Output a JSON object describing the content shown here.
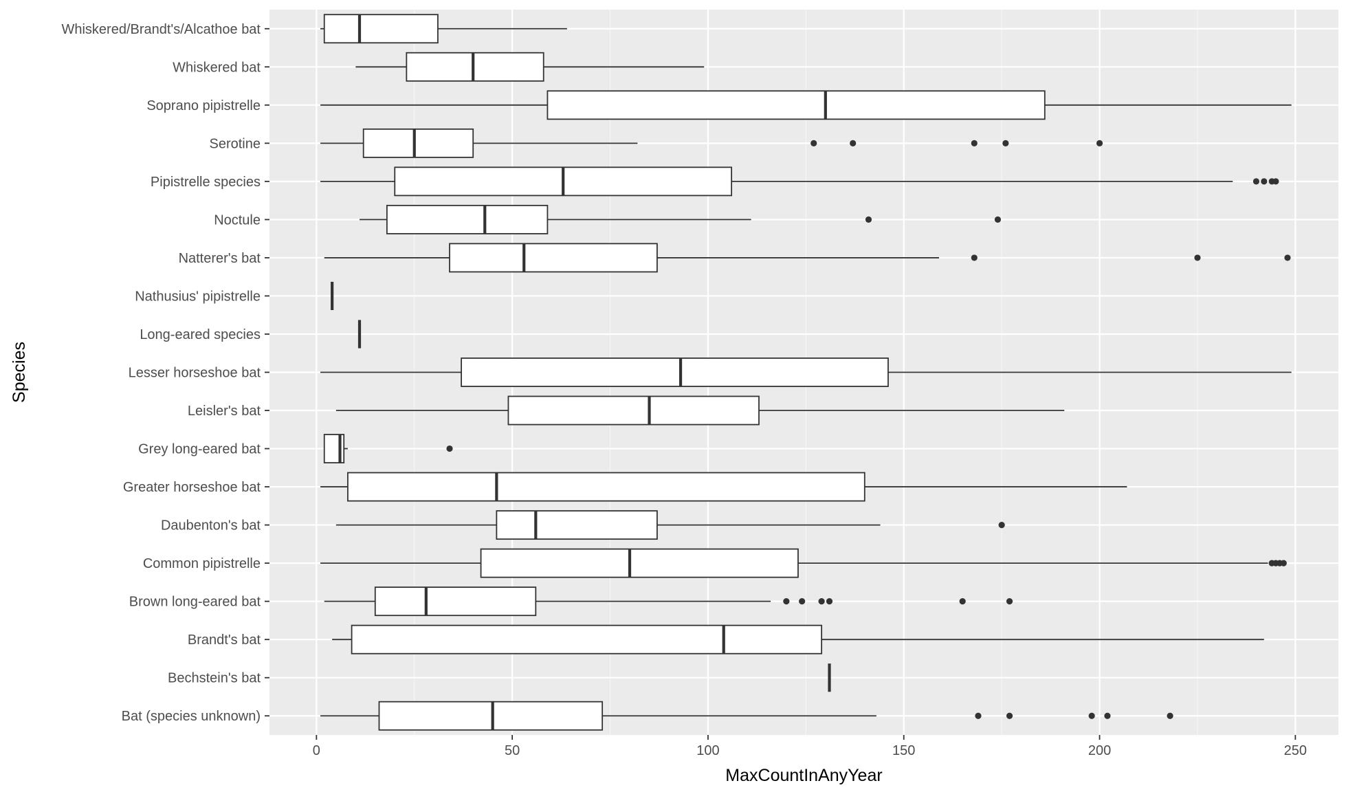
{
  "chart_data": {
    "type": "boxplot",
    "orientation": "horizontal",
    "xlabel": "MaxCountInAnyYear",
    "ylabel": "Species",
    "xlim": [
      -12,
      261
    ],
    "xticks": [
      0,
      50,
      100,
      150,
      200,
      250
    ],
    "grid": true,
    "legend": "none",
    "colors": {
      "panel": "#EBEBEB",
      "grid_major": "#FFFFFF",
      "box_fill": "#FFFFFF",
      "stroke": "#333333",
      "tick_text": "#4D4D4D"
    },
    "categories": [
      "Whiskered/Brandt's/Alcathoe bat",
      "Whiskered bat",
      "Soprano pipistrelle",
      "Serotine",
      "Pipistrelle species",
      "Noctule",
      "Natterer's bat",
      "Nathusius' pipistrelle",
      "Long-eared species",
      "Lesser horseshoe bat",
      "Leisler's bat",
      "Grey long-eared bat",
      "Greater horseshoe bat",
      "Daubenton's bat",
      "Common pipistrelle",
      "Brown long-eared bat",
      "Brandt's bat",
      "Bechstein's bat",
      "Bat (species unknown)"
    ],
    "boxes": [
      {
        "min": 1,
        "q1": 2,
        "median": 11,
        "q3": 31,
        "max": 64,
        "outliers": []
      },
      {
        "min": 10,
        "q1": 23,
        "median": 40,
        "q3": 58,
        "max": 99,
        "outliers": []
      },
      {
        "min": 1,
        "q1": 59,
        "median": 130,
        "q3": 186,
        "max": 249,
        "outliers": []
      },
      {
        "min": 1,
        "q1": 12,
        "median": 25,
        "q3": 40,
        "max": 82,
        "outliers": [
          127,
          137,
          168,
          176,
          200
        ]
      },
      {
        "min": 1,
        "q1": 20,
        "median": 63,
        "q3": 106,
        "max": 234,
        "outliers": [
          240,
          242,
          244,
          245
        ]
      },
      {
        "min": 11,
        "q1": 18,
        "median": 43,
        "q3": 59,
        "max": 111,
        "outliers": [
          141,
          174
        ]
      },
      {
        "min": 2,
        "q1": 34,
        "median": 53,
        "q3": 87,
        "max": 159,
        "outliers": [
          168,
          225,
          248
        ]
      },
      {
        "min": 4,
        "q1": 4,
        "median": 4,
        "q3": 4,
        "max": 4,
        "outliers": []
      },
      {
        "min": 11,
        "q1": 11,
        "median": 11,
        "q3": 11,
        "max": 11,
        "outliers": []
      },
      {
        "min": 1,
        "q1": 37,
        "median": 93,
        "q3": 146,
        "max": 249,
        "outliers": []
      },
      {
        "min": 5,
        "q1": 49,
        "median": 85,
        "q3": 113,
        "max": 191,
        "outliers": []
      },
      {
        "min": 2,
        "q1": 2,
        "median": 6,
        "q3": 7,
        "max": 8,
        "outliers": [
          34
        ]
      },
      {
        "min": 1,
        "q1": 8,
        "median": 46,
        "q3": 140,
        "max": 207,
        "outliers": []
      },
      {
        "min": 5,
        "q1": 46,
        "median": 56,
        "q3": 87,
        "max": 144,
        "outliers": [
          175
        ]
      },
      {
        "min": 1,
        "q1": 42,
        "median": 80,
        "q3": 123,
        "max": 243,
        "outliers": [
          244,
          245,
          246,
          247
        ]
      },
      {
        "min": 2,
        "q1": 15,
        "median": 28,
        "q3": 56,
        "max": 116,
        "outliers": [
          120,
          124,
          129,
          131,
          165,
          177
        ]
      },
      {
        "min": 4,
        "q1": 9,
        "median": 104,
        "q3": 129,
        "max": 242,
        "outliers": []
      },
      {
        "min": 131,
        "q1": 131,
        "median": 131,
        "q3": 131,
        "max": 131,
        "outliers": []
      },
      {
        "min": 1,
        "q1": 16,
        "median": 45,
        "q3": 73,
        "max": 143,
        "outliers": [
          169,
          177,
          198,
          202,
          218
        ]
      }
    ]
  }
}
